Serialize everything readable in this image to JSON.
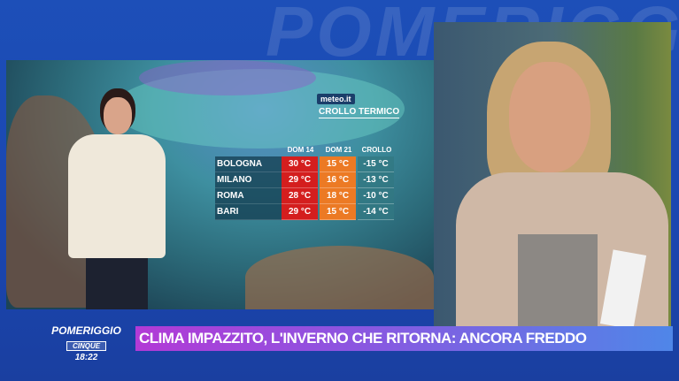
{
  "background_text": "POMERIGGIO",
  "weather": {
    "source_logo": "meteo.it",
    "title": "CROLLO TERMICO",
    "headers": [
      "DOM 14",
      "DOM 21",
      "CROLLO"
    ],
    "rows": [
      {
        "city": "BOLOGNA",
        "dom14": "30 °C",
        "dom21": "15 °C",
        "crollo": "-15 °C"
      },
      {
        "city": "MILANO",
        "dom14": "29 °C",
        "dom21": "16 °C",
        "crollo": "-13 °C"
      },
      {
        "city": "ROMA",
        "dom14": "28 °C",
        "dom21": "18 °C",
        "crollo": "-10 °C"
      },
      {
        "city": "BARI",
        "dom14": "29 °C",
        "dom21": "15 °C",
        "crollo": "-14 °C"
      }
    ],
    "colors": {
      "hot": "#d41e1e",
      "cool": "#ec7a24",
      "drop": "#327882"
    }
  },
  "brand": {
    "line1": "POMERIGGIO",
    "line2": "CINQUE",
    "time": "18:22"
  },
  "ticker": {
    "headline": "CLIMA IMPAZZITO, L'INVERNO CHE RITORNA: ANCORA FREDDO"
  }
}
